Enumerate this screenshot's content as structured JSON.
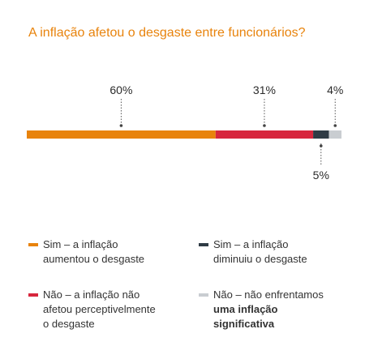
{
  "title": "A inflação afetou o desgaste entre funcionários?",
  "chart_data": {
    "type": "bar",
    "orientation": "horizontal-stacked",
    "series": [
      {
        "name": "Sim – a inflação aumentou o desgaste",
        "value": 60,
        "label": "60%",
        "color": "#e8830c"
      },
      {
        "name": "Não – a inflação não afetou perceptivelmente o desgaste",
        "value": 31,
        "label": "31%",
        "color": "#d7263d"
      },
      {
        "name": "Sim – a inflação diminuiu o desgaste",
        "value": 5,
        "label": "5%",
        "color": "#2f3b45"
      },
      {
        "name": "Não – não enfrentamos uma inflação significativa",
        "value": 4,
        "label": "4%",
        "color": "#c9cdd1"
      }
    ],
    "total": 100,
    "label_positions": [
      "above",
      "above",
      "below",
      "above"
    ]
  },
  "legend": [
    {
      "line1": "Sim – a inflação",
      "line2": "aumentou o desgaste",
      "line3": "",
      "bold_from": 0,
      "color": "#e8830c"
    },
    {
      "line1": "Sim – a inflação",
      "line2": "diminuiu o desgaste",
      "line3": "",
      "bold_from": 0,
      "color": "#2f3b45"
    },
    {
      "line1": "Não – a inflação não",
      "line2": "afetou perceptivelmente",
      "line3": "o desgaste",
      "bold_from": 0,
      "color": "#d7263d"
    },
    {
      "line1": "Não – não enfrentamos",
      "line2": "uma inflação",
      "line3": "significativa",
      "bold_from": 2,
      "color": "#c9cdd1"
    }
  ]
}
